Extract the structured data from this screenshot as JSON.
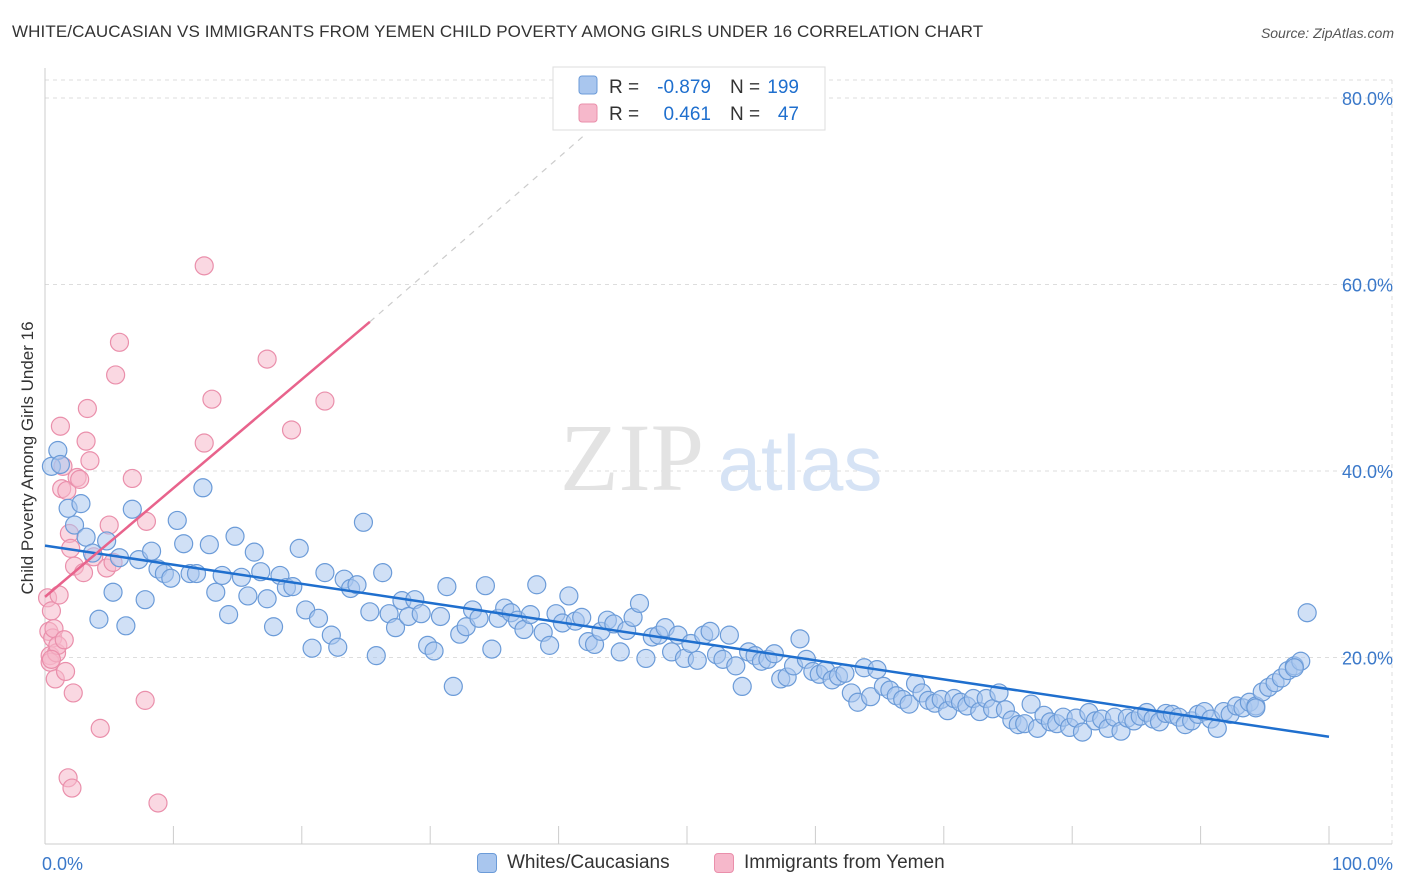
{
  "title": "WHITE/CAUCASIAN VS IMMIGRANTS FROM YEMEN CHILD POVERTY AMONG GIRLS UNDER 16 CORRELATION CHART",
  "source": "Source: ZipAtlas.com",
  "watermark": {
    "zip": "ZIP",
    "atlas": "atlas"
  },
  "colors": {
    "blue_fill": "#a9c6ee",
    "blue_stroke": "#6b9bd8",
    "blue_line": "#1f6fce",
    "pink_fill": "#f6b8cb",
    "pink_stroke": "#ea8fab",
    "pink_line": "#e8638c",
    "axis_text": "#3a78c9",
    "grid": "#dddddd"
  },
  "legend": {
    "rows": [
      {
        "r_label": "R =",
        "r_value": "-0.879",
        "n_label": "N =",
        "n_value": "199",
        "color": "blue"
      },
      {
        "r_label": "R =",
        "r_value": "0.461",
        "n_label": "N =",
        "n_value": "47",
        "color": "pink"
      }
    ]
  },
  "bottom_legend": [
    {
      "label": "Whites/Caucasians",
      "color": "blue"
    },
    {
      "label": "Immigrants from Yemen",
      "color": "pink"
    }
  ],
  "chart_data": {
    "type": "scatter",
    "ylabel": "Child Poverty Among Girls Under 16",
    "xlim": [
      0,
      100
    ],
    "ylim": [
      0,
      80
    ],
    "x_tick_labels": [
      {
        "value": 0,
        "label": "0.0%"
      },
      {
        "value": 100,
        "label": "100.0%"
      }
    ],
    "y_tick_labels": [
      {
        "value": 20,
        "label": "20.0%"
      },
      {
        "value": 40,
        "label": "40.0%"
      },
      {
        "value": 60,
        "label": "60.0%"
      },
      {
        "value": 80,
        "label": "80.0%"
      }
    ],
    "grid": "horizontal dashed",
    "series": [
      {
        "name": "Whites/Caucasians",
        "color": "blue",
        "trend": {
          "x": [
            0,
            100
          ],
          "y": [
            32.0,
            11.5
          ]
        },
        "points": [
          [
            0.5,
            40.5
          ],
          [
            1.0,
            42.2
          ],
          [
            1.2,
            40.7
          ],
          [
            1.8,
            36.0
          ],
          [
            2.3,
            34.2
          ],
          [
            2.8,
            36.5
          ],
          [
            3.2,
            32.9
          ],
          [
            3.7,
            31.2
          ],
          [
            4.2,
            24.1
          ],
          [
            4.8,
            32.5
          ],
          [
            5.3,
            27.0
          ],
          [
            5.8,
            30.7
          ],
          [
            6.3,
            23.4
          ],
          [
            6.8,
            35.9
          ],
          [
            7.3,
            30.5
          ],
          [
            7.8,
            26.2
          ],
          [
            8.3,
            31.4
          ],
          [
            8.8,
            29.5
          ],
          [
            9.3,
            29.0
          ],
          [
            9.8,
            28.5
          ],
          [
            10.3,
            34.7
          ],
          [
            10.8,
            32.2
          ],
          [
            11.3,
            29.0
          ],
          [
            11.8,
            29.0
          ],
          [
            12.3,
            38.2
          ],
          [
            12.8,
            32.1
          ],
          [
            13.3,
            27.0
          ],
          [
            13.8,
            28.8
          ],
          [
            14.3,
            24.6
          ],
          [
            14.8,
            33.0
          ],
          [
            15.3,
            28.6
          ],
          [
            15.8,
            26.6
          ],
          [
            16.3,
            31.3
          ],
          [
            16.8,
            29.2
          ],
          [
            17.3,
            26.3
          ],
          [
            17.8,
            23.3
          ],
          [
            18.3,
            28.8
          ],
          [
            18.8,
            27.5
          ],
          [
            19.3,
            27.6
          ],
          [
            19.8,
            31.7
          ],
          [
            20.3,
            25.1
          ],
          [
            20.8,
            21.0
          ],
          [
            21.3,
            24.2
          ],
          [
            21.8,
            29.1
          ],
          [
            22.3,
            22.4
          ],
          [
            22.8,
            21.1
          ],
          [
            23.3,
            28.4
          ],
          [
            23.8,
            27.4
          ],
          [
            24.3,
            27.8
          ],
          [
            24.8,
            34.5
          ],
          [
            25.3,
            24.9
          ],
          [
            25.8,
            20.2
          ],
          [
            26.3,
            29.1
          ],
          [
            26.8,
            24.7
          ],
          [
            27.3,
            23.2
          ],
          [
            27.8,
            26.1
          ],
          [
            28.3,
            24.4
          ],
          [
            28.8,
            26.2
          ],
          [
            29.3,
            24.7
          ],
          [
            29.8,
            21.3
          ],
          [
            30.3,
            20.7
          ],
          [
            30.8,
            24.4
          ],
          [
            31.3,
            27.6
          ],
          [
            31.8,
            16.9
          ],
          [
            32.3,
            22.5
          ],
          [
            32.8,
            23.3
          ],
          [
            33.3,
            25.1
          ],
          [
            33.8,
            24.2
          ],
          [
            34.3,
            27.7
          ],
          [
            34.8,
            20.9
          ],
          [
            35.3,
            24.2
          ],
          [
            35.8,
            25.3
          ],
          [
            36.3,
            24.8
          ],
          [
            36.8,
            24.0
          ],
          [
            37.3,
            23.0
          ],
          [
            37.8,
            24.6
          ],
          [
            38.3,
            27.8
          ],
          [
            38.8,
            22.7
          ],
          [
            39.3,
            21.3
          ],
          [
            39.8,
            24.7
          ],
          [
            40.3,
            23.7
          ],
          [
            40.8,
            26.6
          ],
          [
            41.3,
            23.9
          ],
          [
            41.8,
            24.3
          ],
          [
            42.3,
            21.7
          ],
          [
            42.8,
            21.4
          ],
          [
            43.3,
            22.8
          ],
          [
            43.8,
            24.0
          ],
          [
            44.3,
            23.6
          ],
          [
            44.8,
            20.6
          ],
          [
            45.3,
            22.9
          ],
          [
            45.8,
            24.3
          ],
          [
            46.3,
            25.8
          ],
          [
            46.8,
            19.9
          ],
          [
            47.3,
            22.2
          ],
          [
            47.8,
            22.4
          ],
          [
            48.3,
            23.2
          ],
          [
            48.8,
            20.6
          ],
          [
            49.3,
            22.4
          ],
          [
            49.8,
            19.9
          ],
          [
            50.3,
            21.5
          ],
          [
            50.8,
            19.7
          ],
          [
            51.3,
            22.4
          ],
          [
            51.8,
            22.8
          ],
          [
            52.3,
            20.3
          ],
          [
            52.8,
            19.8
          ],
          [
            53.3,
            22.4
          ],
          [
            53.8,
            19.1
          ],
          [
            54.3,
            16.9
          ],
          [
            54.8,
            20.6
          ],
          [
            55.3,
            20.2
          ],
          [
            55.8,
            19.6
          ],
          [
            56.3,
            19.8
          ],
          [
            56.8,
            20.4
          ],
          [
            57.3,
            17.7
          ],
          [
            57.8,
            17.9
          ],
          [
            58.3,
            19.1
          ],
          [
            58.8,
            22.0
          ],
          [
            59.3,
            19.8
          ],
          [
            59.8,
            18.5
          ],
          [
            60.3,
            18.2
          ],
          [
            60.8,
            18.6
          ],
          [
            61.3,
            17.6
          ],
          [
            61.8,
            18.0
          ],
          [
            62.3,
            18.3
          ],
          [
            62.8,
            16.2
          ],
          [
            63.3,
            15.2
          ],
          [
            63.8,
            18.9
          ],
          [
            64.3,
            15.8
          ],
          [
            64.8,
            18.7
          ],
          [
            65.3,
            16.9
          ],
          [
            65.8,
            16.5
          ],
          [
            66.3,
            15.9
          ],
          [
            66.8,
            15.5
          ],
          [
            67.3,
            15.0
          ],
          [
            67.8,
            17.2
          ],
          [
            68.3,
            16.2
          ],
          [
            68.8,
            15.4
          ],
          [
            69.3,
            15.1
          ],
          [
            69.8,
            15.5
          ],
          [
            70.3,
            14.3
          ],
          [
            70.8,
            15.6
          ],
          [
            71.3,
            15.2
          ],
          [
            71.8,
            14.8
          ],
          [
            72.3,
            15.6
          ],
          [
            72.8,
            14.2
          ],
          [
            73.3,
            15.6
          ],
          [
            73.8,
            14.5
          ],
          [
            74.3,
            16.2
          ],
          [
            74.8,
            14.4
          ],
          [
            75.3,
            13.3
          ],
          [
            75.8,
            12.8
          ],
          [
            76.3,
            12.9
          ],
          [
            76.8,
            15.0
          ],
          [
            77.3,
            12.4
          ],
          [
            77.8,
            13.8
          ],
          [
            78.3,
            13.1
          ],
          [
            78.8,
            12.9
          ],
          [
            79.3,
            13.6
          ],
          [
            79.8,
            12.5
          ],
          [
            80.3,
            13.5
          ],
          [
            80.8,
            12.0
          ],
          [
            81.3,
            14.1
          ],
          [
            81.8,
            13.2
          ],
          [
            82.3,
            13.4
          ],
          [
            82.8,
            12.4
          ],
          [
            83.3,
            13.6
          ],
          [
            83.8,
            12.1
          ],
          [
            84.3,
            13.5
          ],
          [
            84.8,
            13.2
          ],
          [
            85.3,
            13.7
          ],
          [
            85.8,
            14.1
          ],
          [
            86.3,
            13.4
          ],
          [
            86.8,
            13.1
          ],
          [
            87.3,
            14.0
          ],
          [
            87.8,
            13.9
          ],
          [
            88.3,
            13.6
          ],
          [
            88.8,
            12.8
          ],
          [
            89.3,
            13.2
          ],
          [
            89.8,
            13.9
          ],
          [
            90.3,
            14.2
          ],
          [
            90.8,
            13.4
          ],
          [
            91.3,
            12.4
          ],
          [
            91.8,
            14.2
          ],
          [
            92.3,
            13.9
          ],
          [
            92.8,
            14.8
          ],
          [
            93.3,
            14.6
          ],
          [
            93.8,
            15.2
          ],
          [
            94.3,
            14.8
          ],
          [
            94.8,
            16.3
          ],
          [
            95.3,
            16.8
          ],
          [
            95.8,
            17.3
          ],
          [
            96.3,
            17.8
          ],
          [
            96.8,
            18.6
          ],
          [
            97.3,
            19.1
          ],
          [
            97.8,
            19.6
          ],
          [
            98.3,
            24.8
          ],
          [
            94.3,
            14.6
          ],
          [
            97.3,
            18.9
          ]
        ]
      },
      {
        "name": "Immigrants from Yemen",
        "color": "pink",
        "trend": {
          "x": [
            0,
            25.3
          ],
          "y": [
            26.5,
            56.0
          ],
          "dashed_to": {
            "x": 42,
            "y": 76
          }
        },
        "points": [
          [
            0.2,
            26.4
          ],
          [
            0.3,
            22.8
          ],
          [
            0.4,
            20.2
          ],
          [
            0.4,
            19.5
          ],
          [
            0.5,
            25.0
          ],
          [
            0.6,
            22.1
          ],
          [
            0.7,
            23.1
          ],
          [
            0.8,
            17.7
          ],
          [
            0.9,
            20.5
          ],
          [
            1.0,
            21.3
          ],
          [
            1.1,
            26.7
          ],
          [
            1.2,
            44.8
          ],
          [
            1.3,
            38.1
          ],
          [
            1.4,
            40.5
          ],
          [
            1.5,
            21.9
          ],
          [
            1.6,
            18.5
          ],
          [
            1.7,
            37.9
          ],
          [
            1.8,
            7.1
          ],
          [
            1.9,
            33.3
          ],
          [
            2.0,
            31.7
          ],
          [
            2.1,
            6.0
          ],
          [
            2.2,
            16.2
          ],
          [
            2.3,
            29.8
          ],
          [
            2.5,
            39.3
          ],
          [
            2.7,
            39.1
          ],
          [
            3.0,
            29.1
          ],
          [
            3.2,
            43.2
          ],
          [
            3.3,
            46.7
          ],
          [
            3.5,
            41.1
          ],
          [
            3.8,
            30.8
          ],
          [
            4.3,
            12.4
          ],
          [
            4.8,
            29.6
          ],
          [
            5.0,
            34.2
          ],
          [
            5.3,
            30.2
          ],
          [
            5.5,
            50.3
          ],
          [
            5.8,
            53.8
          ],
          [
            6.8,
            39.2
          ],
          [
            7.8,
            15.4
          ],
          [
            7.9,
            34.6
          ],
          [
            8.8,
            4.4
          ],
          [
            12.4,
            62.0
          ],
          [
            12.4,
            43.0
          ],
          [
            13.0,
            47.7
          ],
          [
            17.3,
            52.0
          ],
          [
            19.2,
            44.4
          ],
          [
            21.8,
            47.5
          ],
          [
            0.5,
            19.8
          ]
        ]
      }
    ]
  }
}
